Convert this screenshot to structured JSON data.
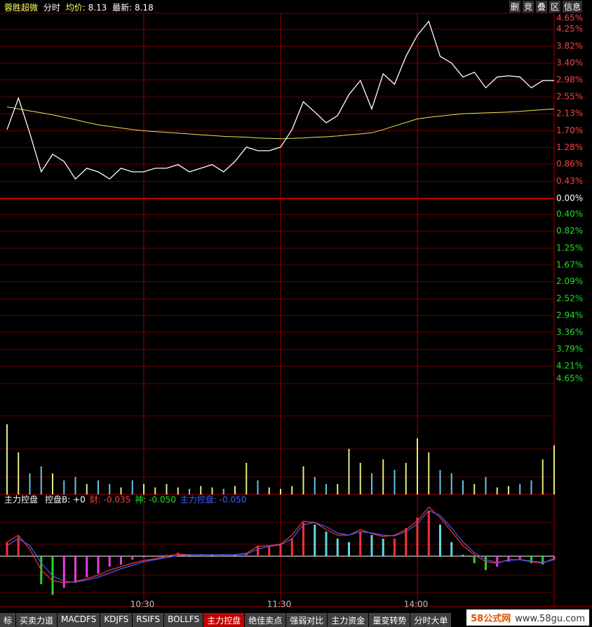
{
  "header": {
    "stock": "蓉胜超微",
    "mode": "分时",
    "avg_label": "均价:",
    "avg": 8.13,
    "last_label": "最新:",
    "last": 8.18
  },
  "toolbar": [
    "删",
    "竞",
    "叠",
    "区",
    "信息"
  ],
  "chart_data": [
    {
      "type": "line",
      "x": [
        0,
        5,
        10,
        15,
        20,
        25,
        30,
        35,
        40,
        45,
        50,
        55,
        60,
        65,
        70,
        75,
        80,
        85,
        90,
        95,
        100,
        105,
        110,
        115,
        120,
        125,
        130,
        135,
        140,
        145,
        150,
        155,
        160,
        165,
        170,
        175,
        180,
        185,
        190,
        195,
        200,
        205,
        210,
        215,
        220,
        225,
        230,
        235,
        240
      ],
      "xlim": [
        0,
        240
      ],
      "xticks": [
        {
          "value": 60,
          "label": "10:30"
        },
        {
          "value": 120,
          "label": "11:30"
        },
        {
          "value": 180,
          "label": "14:00"
        }
      ],
      "ylim": [
        -4.65,
        4.65
      ],
      "yticks": [
        {
          "value": 4.65,
          "label": "4.65%"
        },
        {
          "value": 4.25,
          "label": "4.25%"
        },
        {
          "value": 3.82,
          "label": "3.82%"
        },
        {
          "value": 3.4,
          "label": "3.40%"
        },
        {
          "value": 2.98,
          "label": "2.98%"
        },
        {
          "value": 2.55,
          "label": "2.55%"
        },
        {
          "value": 2.13,
          "label": "2.13%"
        },
        {
          "value": 1.7,
          "label": "1.70%"
        },
        {
          "value": 1.28,
          "label": "1.28%"
        },
        {
          "value": 0.86,
          "label": "0.86%"
        },
        {
          "value": 0.43,
          "label": "0.43%"
        },
        {
          "value": 0,
          "label": "0.00%"
        },
        {
          "value": -0.4,
          "label": "0.40%"
        },
        {
          "value": -0.82,
          "label": "0.82%"
        },
        {
          "value": -1.25,
          "label": "1.25%"
        },
        {
          "value": -1.67,
          "label": "1.67%"
        },
        {
          "value": -2.09,
          "label": "2.09%"
        },
        {
          "value": -2.52,
          "label": "2.52%"
        },
        {
          "value": -2.94,
          "label": "2.94%"
        },
        {
          "value": -3.36,
          "label": "3.36%"
        },
        {
          "value": -3.79,
          "label": "3.79%"
        },
        {
          "value": -4.21,
          "label": "4.21%"
        },
        {
          "value": -4.65,
          "label": "4.65%"
        }
      ],
      "tick_colors": {
        "up": "#ff4040",
        "zero": "#ffffff",
        "down": "#20e020"
      },
      "series": [
        {
          "color": "#ffffff",
          "values": [
            1.73,
            2.52,
            1.64,
            0.67,
            1.11,
            0.93,
            0.49,
            0.76,
            0.67,
            0.49,
            0.76,
            0.67,
            0.67,
            0.76,
            0.76,
            0.85,
            0.67,
            0.76,
            0.85,
            0.67,
            0.93,
            1.29,
            1.2,
            1.2,
            1.29,
            1.73,
            2.43,
            2.17,
            1.9,
            2.08,
            2.61,
            2.96,
            2.25,
            3.13,
            2.87,
            3.57,
            4.1,
            4.45,
            3.57,
            3.4,
            3.05,
            3.17,
            2.78,
            3.05,
            3.08,
            3.05,
            2.78,
            2.96,
            2.96
          ]
        },
        {
          "color": "#e6e65a",
          "values": [
            2.3,
            2.25,
            2.2,
            2.15,
            2.1,
            2.04,
            1.98,
            1.91,
            1.85,
            1.81,
            1.77,
            1.73,
            1.7,
            1.68,
            1.66,
            1.64,
            1.62,
            1.6,
            1.58,
            1.56,
            1.55,
            1.54,
            1.52,
            1.51,
            1.5,
            1.51,
            1.52,
            1.54,
            1.55,
            1.57,
            1.6,
            1.62,
            1.65,
            1.73,
            1.82,
            1.91,
            2.0,
            2.04,
            2.07,
            2.1,
            2.13,
            2.14,
            2.15,
            2.16,
            2.17,
            2.19,
            2.21,
            2.23,
            2.25
          ]
        }
      ]
    },
    {
      "type": "bar",
      "x": [
        0,
        5,
        10,
        15,
        20,
        25,
        30,
        35,
        40,
        45,
        50,
        55,
        60,
        65,
        70,
        75,
        80,
        85,
        90,
        95,
        100,
        105,
        110,
        115,
        120,
        125,
        130,
        135,
        140,
        145,
        150,
        155,
        160,
        165,
        170,
        175,
        180,
        185,
        190,
        195,
        200,
        205,
        210,
        215,
        220,
        225,
        230,
        235,
        240
      ],
      "xlim": [
        0,
        240
      ],
      "ylim": [
        0,
        158
      ],
      "up_color": "#e8e880",
      "down_color": "#60c8e8",
      "values": [
        100,
        60,
        30,
        40,
        30,
        20,
        25,
        15,
        20,
        15,
        10,
        20,
        15,
        10,
        15,
        10,
        8,
        12,
        10,
        8,
        12,
        45,
        20,
        10,
        8,
        12,
        40,
        25,
        15,
        15,
        65,
        45,
        30,
        50,
        35,
        45,
        80,
        60,
        35,
        30,
        20,
        15,
        25,
        10,
        12,
        15,
        20,
        50,
        70
      ]
    },
    {
      "type": "bar",
      "title": "主力控盘",
      "legend": [
        {
          "text": "控盘B: +0",
          "color": "#ffffff"
        },
        {
          "text": "财: -0.035",
          "color": "#ff4040"
        },
        {
          "text": "神: -0.050",
          "color": "#20e020"
        },
        {
          "text": "主力控盘: -0.050",
          "color": "#4060ff"
        }
      ],
      "x": [
        0,
        5,
        10,
        15,
        20,
        25,
        30,
        35,
        40,
        45,
        50,
        55,
        60,
        65,
        70,
        75,
        80,
        85,
        90,
        95,
        100,
        105,
        110,
        115,
        120,
        125,
        130,
        135,
        140,
        145,
        150,
        155,
        160,
        165,
        170,
        175,
        180,
        185,
        190,
        195,
        200,
        205,
        210,
        215,
        220,
        225,
        230,
        235,
        240
      ],
      "xlim": [
        0,
        240
      ],
      "ylim": [
        -0.67,
        0.73
      ],
      "bar_colors": {
        "pos_up": "#ff3030",
        "pos_down": "#60d8e8",
        "neg_up": "#e040e0",
        "neg_down": "#30d030"
      },
      "values": [
        0.2,
        0.28,
        0,
        -0.4,
        -0.55,
        -0.45,
        -0.38,
        -0.3,
        -0.25,
        -0.15,
        -0.12,
        -0.05,
        -0.02,
        0,
        0.02,
        0.05,
        0.02,
        0.03,
        0.02,
        0.03,
        0.02,
        0.05,
        0.15,
        0.15,
        0.18,
        0.25,
        0.48,
        0.45,
        0.35,
        0.25,
        0.2,
        0.35,
        0.3,
        0.25,
        0.25,
        0.4,
        0.55,
        0.65,
        0.45,
        0.2,
        0.02,
        -0.1,
        -0.2,
        -0.15,
        -0.08,
        -0.05,
        -0.1,
        -0.12,
        -0.05
      ],
      "lines": [
        {
          "color": "#ff3030",
          "values": [
            0.2,
            0.3,
            0.1,
            -0.2,
            -0.35,
            -0.38,
            -0.36,
            -0.32,
            -0.27,
            -0.2,
            -0.15,
            -0.1,
            -0.06,
            -0.04,
            0,
            0.03,
            0.02,
            0.02,
            0.02,
            0.02,
            0.02,
            0.04,
            0.14,
            0.15,
            0.17,
            0.3,
            0.5,
            0.48,
            0.38,
            0.3,
            0.3,
            0.38,
            0.32,
            0.28,
            0.3,
            0.38,
            0.5,
            0.7,
            0.55,
            0.35,
            0.15,
            0.02,
            -0.08,
            -0.1,
            -0.05,
            -0.05,
            -0.08,
            -0.1,
            -0.03
          ]
        },
        {
          "color": "#4060ff",
          "values": [
            0.15,
            0.25,
            0.15,
            -0.1,
            -0.28,
            -0.36,
            -0.37,
            -0.34,
            -0.3,
            -0.24,
            -0.18,
            -0.13,
            -0.08,
            -0.05,
            -0.02,
            0.01,
            0.02,
            0.02,
            0.02,
            0.02,
            0.02,
            0.03,
            0.1,
            0.14,
            0.16,
            0.25,
            0.45,
            0.48,
            0.42,
            0.33,
            0.3,
            0.35,
            0.33,
            0.3,
            0.29,
            0.35,
            0.46,
            0.65,
            0.58,
            0.4,
            0.2,
            0.05,
            -0.05,
            -0.09,
            -0.06,
            -0.05,
            -0.07,
            -0.09,
            -0.05
          ]
        }
      ]
    }
  ],
  "tabs": [
    "标",
    "买卖力道",
    "MACDFS",
    "KDJFS",
    "RSIFS",
    "BOLLFS",
    "主力控盘",
    "绝佳卖点",
    "强弱对比",
    "主力资金",
    "量变转势",
    "分时大单"
  ],
  "active_tab": 6,
  "watermark": {
    "brand": "58公式网",
    "url": "www.58gu.com"
  }
}
